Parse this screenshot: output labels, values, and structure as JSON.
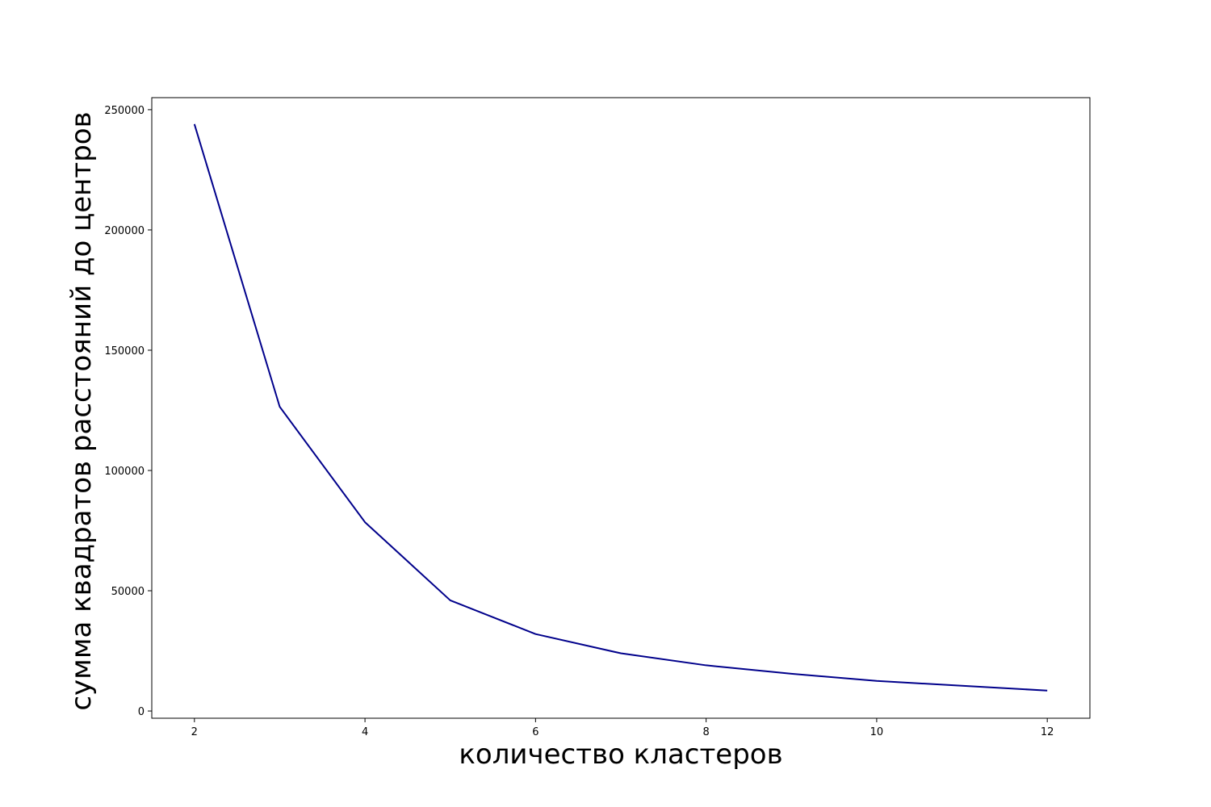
{
  "chart_data": {
    "type": "line",
    "title": "",
    "xlabel": "количество кластеров",
    "ylabel": "сумма квадратов расстояний до центров",
    "x": [
      2,
      3,
      4,
      5,
      6,
      7,
      8,
      9,
      10,
      11,
      12
    ],
    "series": [
      {
        "values": [
          244000,
          126500,
          78500,
          46000,
          32000,
          24000,
          19000,
          15500,
          12500,
          10500,
          8500
        ],
        "color": "#00008b"
      }
    ],
    "xlim": [
      1.5,
      12.5
    ],
    "ylim": [
      -3000,
      255000
    ],
    "xticks": [
      2,
      4,
      6,
      8,
      10,
      12
    ],
    "yticks": [
      0,
      50000,
      100000,
      150000,
      200000,
      250000
    ],
    "grid": false,
    "legend": "none"
  }
}
